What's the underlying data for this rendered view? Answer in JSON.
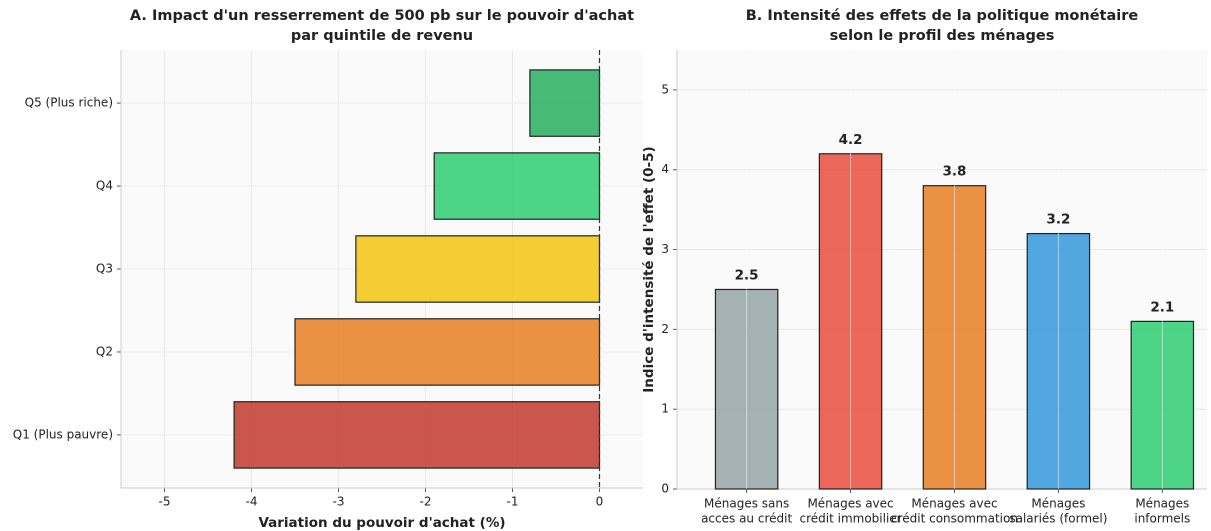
{
  "chart_data": [
    {
      "type": "hbar",
      "title": [
        "A. Impact d'un resserrement de 500 pb sur le pouvoir d'achat",
        "par quintile de revenu"
      ],
      "xlabel": "Variation du pouvoir d'achat (%)",
      "categories": [
        "Q1 (Plus pauvre)",
        "Q2",
        "Q3",
        "Q4",
        "Q5 (Plus riche)"
      ],
      "values": [
        -4.2,
        -3.5,
        -2.8,
        -1.9,
        -0.8
      ],
      "colors": [
        "#c0392b",
        "#e67e22",
        "#f1c40f",
        "#2ecc71",
        "#27ae60"
      ],
      "xlim": [
        -5.5,
        0.5
      ],
      "xticks": [
        -5,
        -4,
        -3,
        -2,
        -1,
        0
      ],
      "reference_line": 0,
      "grid": true
    },
    {
      "type": "bar",
      "title": [
        "B. Intensité des effets de la politique monétaire",
        "selon le profil des ménages"
      ],
      "ylabel": "Indice d'intensité de l'effet (0-5)",
      "categories": [
        [
          "Ménages sans",
          "acces au crédit"
        ],
        [
          "Ménages avec",
          "crédit immobilier"
        ],
        [
          "Ménages avec",
          "crédit consommation"
        ],
        [
          "Ménages",
          "salariés (formel)"
        ],
        [
          "Ménages",
          "informels"
        ]
      ],
      "values": [
        2.5,
        4.2,
        3.8,
        3.2,
        2.1
      ],
      "colors": [
        "#95a5a6",
        "#e74c3c",
        "#e67e22",
        "#3498db",
        "#2ecc71"
      ],
      "ylim": [
        0,
        5.5
      ],
      "yticks": [
        0,
        1,
        2,
        3,
        4,
        5
      ],
      "grid": true
    }
  ]
}
